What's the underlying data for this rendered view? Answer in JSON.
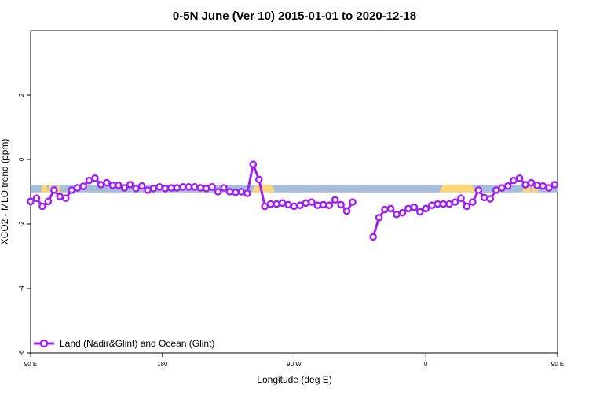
{
  "chart_data": {
    "type": "line",
    "title": "0-5N June (Ver 10)   2015-01-01 to 2020-12-18",
    "xlabel": "Longitude (deg E)",
    "ylabel": "XCO2 - MLO trend (ppm)",
    "xlim": [
      0,
      360
    ],
    "ylim": [
      -6,
      4
    ],
    "x_ticks": [
      {
        "value": 0,
        "label": "90 E"
      },
      {
        "value": 90,
        "label": "180"
      },
      {
        "value": 180,
        "label": "90 W"
      },
      {
        "value": 270,
        "label": "0"
      },
      {
        "value": 360,
        "label": "90 E"
      }
    ],
    "y_ticks": [
      {
        "value": -6,
        "label": "-6"
      },
      {
        "value": -4,
        "label": "-4"
      },
      {
        "value": -2,
        "label": "-2"
      },
      {
        "value": 0,
        "label": "0"
      },
      {
        "value": 2,
        "label": "2"
      }
    ],
    "line_color": "#a020f0",
    "surface_band": {
      "y_range": [
        -1.02,
        -0.78
      ],
      "ocean_color": "#a6bddb",
      "land_color": "#fdd87a",
      "land_segments": [
        [
          7,
          12
        ],
        [
          12,
          14.5
        ],
        [
          18,
          20.5
        ],
        [
          151,
          167
        ],
        [
          279,
          304
        ],
        [
          336,
          342
        ],
        [
          342,
          347
        ]
      ]
    },
    "series": [
      {
        "name": "Land (Nadir&Glint) and Ocean (Glint)",
        "segments": [
          [
            [
              0,
              -1.3
            ],
            [
              4,
              -1.2
            ],
            [
              8,
              -1.45
            ],
            [
              12,
              -1.3
            ],
            [
              16,
              -0.95
            ],
            [
              20,
              -1.15
            ],
            [
              24,
              -1.2
            ],
            [
              28,
              -0.95
            ],
            [
              32,
              -0.88
            ],
            [
              36,
              -0.83
            ],
            [
              40,
              -0.65
            ],
            [
              44,
              -0.58
            ],
            [
              48,
              -0.78
            ],
            [
              52,
              -0.72
            ],
            [
              56,
              -0.8
            ],
            [
              60,
              -0.8
            ],
            [
              64,
              -0.88
            ],
            [
              68,
              -0.78
            ],
            [
              72,
              -0.9
            ],
            [
              76,
              -0.82
            ],
            [
              80,
              -0.95
            ],
            [
              84,
              -0.9
            ],
            [
              88,
              -0.85
            ],
            [
              92,
              -0.9
            ],
            [
              96,
              -0.88
            ],
            [
              100,
              -0.88
            ],
            [
              104,
              -0.85
            ],
            [
              108,
              -0.85
            ],
            [
              112,
              -0.85
            ],
            [
              116,
              -0.88
            ],
            [
              120,
              -0.9
            ],
            [
              124,
              -0.85
            ],
            [
              128,
              -1.0
            ],
            [
              132,
              -0.88
            ],
            [
              136,
              -1.0
            ],
            [
              140,
              -1.02
            ],
            [
              144,
              -1.0
            ],
            [
              148,
              -1.05
            ],
            [
              152,
              -0.15
            ],
            [
              156,
              -0.62
            ],
            [
              160,
              -1.45
            ],
            [
              164,
              -1.38
            ],
            [
              168,
              -1.38
            ],
            [
              172,
              -1.35
            ],
            [
              176,
              -1.4
            ],
            [
              180,
              -1.45
            ],
            [
              184,
              -1.42
            ],
            [
              188,
              -1.35
            ],
            [
              192,
              -1.32
            ],
            [
              196,
              -1.42
            ],
            [
              200,
              -1.4
            ],
            [
              204,
              -1.42
            ],
            [
              208,
              -1.25
            ],
            [
              212,
              -1.4
            ],
            [
              216,
              -1.6
            ],
            [
              220,
              -1.32
            ]
          ],
          [
            [
              234,
              -2.4
            ],
            [
              238,
              -1.8
            ],
            [
              242,
              -1.55
            ],
            [
              246,
              -1.52
            ],
            [
              250,
              -1.7
            ],
            [
              254,
              -1.65
            ],
            [
              258,
              -1.52
            ],
            [
              262,
              -1.48
            ],
            [
              266,
              -1.62
            ],
            [
              270,
              -1.52
            ],
            [
              274,
              -1.42
            ],
            [
              278,
              -1.38
            ],
            [
              282,
              -1.38
            ],
            [
              286,
              -1.38
            ],
            [
              290,
              -1.32
            ],
            [
              294,
              -1.2
            ],
            [
              298,
              -1.45
            ],
            [
              302,
              -1.32
            ],
            [
              306,
              -0.95
            ],
            [
              310,
              -1.18
            ],
            [
              314,
              -1.22
            ],
            [
              318,
              -0.95
            ],
            [
              322,
              -0.88
            ],
            [
              326,
              -0.82
            ],
            [
              330,
              -0.65
            ],
            [
              334,
              -0.58
            ],
            [
              338,
              -0.78
            ],
            [
              342,
              -0.72
            ],
            [
              346,
              -0.8
            ],
            [
              350,
              -0.82
            ],
            [
              354,
              -0.88
            ],
            [
              358,
              -0.78
            ]
          ]
        ]
      }
    ]
  }
}
